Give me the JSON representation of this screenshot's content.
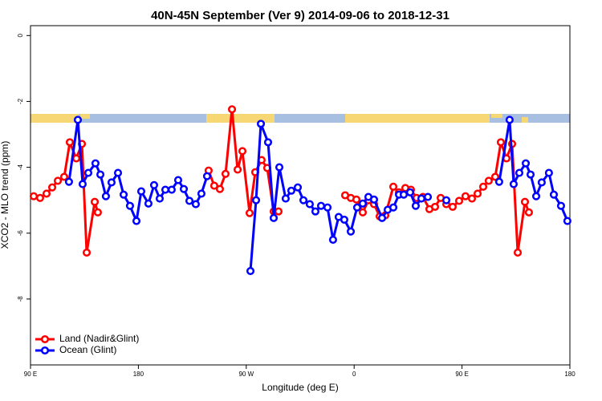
{
  "chart_data": {
    "type": "line",
    "title": "40N-45N September (Ver 9)   2014-09-06 to 2018-12-31",
    "xlabel": "Longitude (deg E)",
    "ylabel": "XCO2 - MLO trend (ppm)",
    "xlim": [
      90,
      540
    ],
    "xticks": [
      {
        "value": 90,
        "label": "90 E"
      },
      180,
      {
        "value": 270,
        "label": "90 W"
      },
      {
        "value": 360,
        "label": "0"
      },
      {
        "value": 450,
        "label": "90 E"
      },
      {
        "value": 540,
        "label": "180"
      }
    ],
    "ylim": [
      -10,
      0.3
    ],
    "yticks": [
      0,
      -2,
      -4,
      -6,
      -8
    ],
    "legend": "bottomleft",
    "series": [
      {
        "name": "Land (Nadir&Glint)",
        "color": "#ff0000",
        "x": [
          92.7,
          98.0,
          103.4,
          108.1,
          112.8,
          118.1,
          122.8,
          128.2,
          132.9,
          136.9,
          143.6,
          146.2,
          null,
          238.6,
          243.3,
          248.0,
          252.7,
          258.1,
          262.8,
          266.8,
          272.8,
          277.5,
          282.8,
          287.5,
          292.9,
          296.9,
          null,
          352.5,
          357.2,
          361.9,
          367.2,
          371.9,
          376.6,
          381.3,
          386.0,
          392.7,
          397.4,
          402.7,
          407.4,
          412.1,
          417.4,
          422.8,
          427.5,
          432.2,
          436.9,
          442.2,
          447.6,
          452.9,
          458.3,
          463.0,
          467.7,
          472.3,
          477.7,
          482.4,
          487.1,
          491.8,
          496.5,
          502.5,
          505.8
        ],
        "values": [
          -4.88,
          -4.93,
          -4.8,
          -4.61,
          -4.41,
          -4.29,
          -3.24,
          -3.73,
          -3.29,
          -6.59,
          -5.05,
          -5.37,
          null,
          -4.1,
          -4.56,
          -4.66,
          -4.2,
          -2.24,
          -4.07,
          -3.51,
          -5.39,
          -4.15,
          -3.78,
          -4.02,
          -5.34,
          -5.34,
          null,
          -4.85,
          -4.93,
          -4.98,
          -5.37,
          -5.0,
          -5.12,
          -5.49,
          -5.46,
          -4.59,
          -4.76,
          -4.63,
          -4.68,
          -4.93,
          -4.9,
          -5.27,
          -5.2,
          -4.93,
          -5.12,
          -5.2,
          -5.02,
          -4.88,
          -4.95,
          -4.8,
          -4.59,
          -4.41,
          -4.29,
          -3.24,
          -3.73,
          -3.29,
          -6.59,
          -5.05,
          -5.37
        ]
      },
      {
        "name": "Ocean (Glint)",
        "color": "#0000ff",
        "x": [
          122.1,
          129.5,
          133.5,
          138.2,
          144.2,
          148.3,
          152.9,
          157.6,
          163.0,
          167.7,
          173.0,
          178.4,
          182.4,
          188.4,
          193.1,
          197.8,
          202.5,
          207.8,
          213.2,
          217.9,
          222.6,
          227.9,
          232.6,
          237.3,
          null,
          273.5,
          278.2,
          282.2,
          288.2,
          292.9,
          297.6,
          302.9,
          307.6,
          313.0,
          317.7,
          323.0,
          327.7,
          332.4,
          337.8,
          342.4,
          347.1,
          351.8,
          357.2,
          362.5,
          367.2,
          371.9,
          376.6,
          383.3,
          388.0,
          392.7,
          397.4,
          401.4,
          406.7,
          411.4,
          416.1,
          421.5,
          null,
          436.9,
          null,
          481.0,
          489.7,
          493.1,
          497.8,
          503.2,
          507.2,
          511.9,
          516.5,
          522.5,
          526.6,
          532.6,
          537.9
        ],
        "values": [
          -4.44,
          -2.56,
          -4.51,
          -4.17,
          -3.88,
          -4.22,
          -4.88,
          -4.46,
          -4.17,
          -4.83,
          -5.17,
          -5.63,
          -4.73,
          -5.1,
          -4.54,
          -4.95,
          -4.68,
          -4.68,
          -4.39,
          -4.66,
          -5.02,
          -5.12,
          -4.8,
          -4.27,
          null,
          -7.15,
          -5.0,
          -2.68,
          -3.24,
          -5.54,
          -4.0,
          -4.95,
          -4.71,
          -4.61,
          -5.0,
          -5.12,
          -5.34,
          -5.17,
          -5.22,
          -6.2,
          -5.51,
          -5.59,
          -5.95,
          -5.22,
          -5.1,
          -4.9,
          -4.98,
          -5.54,
          -5.29,
          -5.22,
          -4.83,
          -4.83,
          -4.76,
          -5.17,
          -4.95,
          -4.9,
          null,
          -5.0,
          null,
          -4.44,
          -2.56,
          -4.51,
          -4.17,
          -3.88,
          -4.22,
          -4.88,
          -4.46,
          -4.17,
          -4.83,
          -5.17,
          -5.63
        ]
      }
    ]
  }
}
